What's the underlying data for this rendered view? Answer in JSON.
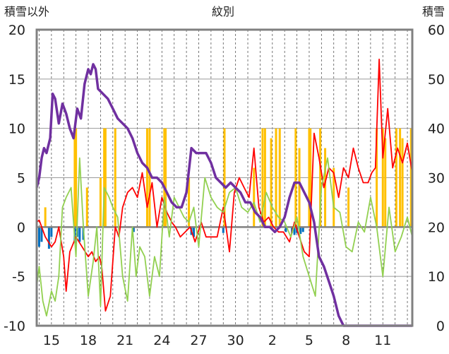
{
  "chart_data": {
    "type": "mixed",
    "title": "紋別",
    "left_axis": {
      "label": "積雪以外",
      "ylim": [
        -10,
        20
      ],
      "ticks": [
        20,
        15,
        10,
        5,
        0,
        -5,
        -10
      ]
    },
    "right_axis": {
      "label": "積雪",
      "ylim": [
        0,
        60
      ],
      "ticks": [
        60,
        50,
        40,
        30,
        20,
        10,
        0
      ]
    },
    "x_axis": {
      "tick_labels": [
        "15",
        "18",
        "21",
        "24",
        "27",
        "30",
        "2",
        "5",
        "8",
        "11"
      ],
      "tick_day_index": [
        2,
        5,
        8,
        11,
        14,
        17,
        20,
        23,
        26,
        29
      ],
      "day_range": [
        0.8,
        31.4
      ]
    },
    "grid": true,
    "series": [
      {
        "kind": "bar",
        "axis": "left",
        "color": "#FFC000",
        "bars": [
          [
            1.5,
            2
          ],
          [
            3.9,
            9.5
          ],
          [
            4.0,
            10
          ],
          [
            4.9,
            4
          ],
          [
            6.0,
            5
          ],
          [
            6.3,
            10
          ],
          [
            6.4,
            10
          ],
          [
            7.2,
            10
          ],
          [
            9.8,
            10
          ],
          [
            10.0,
            10
          ],
          [
            11.2,
            10
          ],
          [
            11.3,
            10
          ],
          [
            13.2,
            5
          ],
          [
            16.1,
            10
          ],
          [
            18.5,
            6
          ],
          [
            19.2,
            10
          ],
          [
            19.4,
            10
          ],
          [
            19.9,
            9
          ],
          [
            20.3,
            10
          ],
          [
            20.6,
            10
          ],
          [
            21.9,
            10
          ],
          [
            22.2,
            8
          ],
          [
            23.0,
            10
          ],
          [
            23.1,
            10
          ],
          [
            23.9,
            10
          ],
          [
            24.3,
            8
          ],
          [
            25.0,
            6
          ],
          [
            26.2,
            4
          ],
          [
            28.5,
            10
          ],
          [
            29.0,
            10
          ],
          [
            29.2,
            9
          ],
          [
            30.1,
            10
          ],
          [
            30.4,
            10
          ],
          [
            30.6,
            9
          ],
          [
            31.3,
            10
          ]
        ]
      },
      {
        "kind": "bar",
        "axis": "left",
        "color": "#0070C0",
        "bars": [
          [
            1.0,
            -2
          ],
          [
            1.2,
            -1.5
          ],
          [
            1.8,
            -2.2
          ],
          [
            2.0,
            -1.0
          ],
          [
            3.9,
            -1.6
          ],
          [
            4.1,
            -1.0
          ],
          [
            4.3,
            -1.5
          ],
          [
            4.6,
            -1.3
          ],
          [
            8.7,
            -0.5
          ],
          [
            13.4,
            -0.8
          ],
          [
            13.6,
            -1.0
          ],
          [
            16.0,
            -0.6
          ],
          [
            21.1,
            -0.5
          ],
          [
            21.6,
            -0.6
          ],
          [
            21.8,
            -0.8
          ],
          [
            22.0,
            -0.6
          ],
          [
            22.3,
            -0.7
          ],
          [
            22.5,
            -0.5
          ]
        ]
      },
      {
        "kind": "line",
        "axis": "left",
        "color": "#FF0000",
        "x": [
          0.8,
          1.0,
          1.5,
          2.0,
          2.3,
          2.6,
          3.0,
          3.2,
          3.5,
          4.0,
          4.5,
          5.0,
          5.3,
          5.6,
          5.9,
          6.1,
          6.4,
          6.8,
          7.2,
          7.5,
          7.8,
          8.2,
          8.6,
          9.0,
          9.4,
          9.8,
          10.2,
          10.6,
          11.0,
          11.4,
          11.8,
          12.1,
          12.5,
          12.9,
          13.3,
          13.7,
          14.2,
          14.6,
          15.0,
          15.5,
          16.0,
          16.5,
          16.9,
          17.3,
          17.7,
          18.1,
          18.5,
          18.9,
          19.3,
          19.7,
          20.1,
          20.5,
          20.9,
          21.4,
          21.8,
          22.2,
          22.6,
          23.0,
          23.4,
          23.8,
          24.2,
          24.6,
          25.0,
          25.4,
          25.8,
          26.2,
          26.6,
          27.0,
          27.4,
          27.8,
          28.1,
          28.4,
          28.7,
          29.0,
          29.4,
          29.8,
          30.2,
          30.6,
          31.0,
          31.4
        ],
        "y": [
          0.5,
          0.7,
          -1.0,
          -2.0,
          -1.5,
          0.0,
          -3.0,
          -6.5,
          -2.5,
          -1.0,
          -2.0,
          -3.0,
          -2.5,
          -3.5,
          -3.0,
          -4.0,
          -8.5,
          -7.0,
          0.0,
          -1.0,
          2.0,
          3.5,
          4.0,
          3.0,
          5.5,
          2.0,
          4.5,
          0.0,
          3.0,
          1.5,
          0.5,
          0.0,
          -1.0,
          -0.5,
          0.0,
          -1.5,
          0.5,
          -1.0,
          -1.0,
          -1.0,
          2.0,
          -2.5,
          3.5,
          5.0,
          4.0,
          3.0,
          8.0,
          2.0,
          0.5,
          1.0,
          0.0,
          -0.5,
          -0.5,
          -1.5,
          0.5,
          -1.0,
          -2.5,
          -3.0,
          9.5,
          7.0,
          4.0,
          6.0,
          5.5,
          3.0,
          6.0,
          5.0,
          8.0,
          6.0,
          4.5,
          4.5,
          5.5,
          6.0,
          17.0,
          7.0,
          12.0,
          6.0,
          8.0,
          6.5,
          8.5,
          5.5
        ]
      },
      {
        "kind": "line",
        "axis": "left",
        "color": "#92D050",
        "x": [
          0.8,
          1.0,
          1.3,
          1.6,
          2.0,
          2.3,
          2.6,
          2.9,
          3.2,
          3.6,
          4.0,
          4.3,
          4.6,
          5.0,
          5.4,
          5.7,
          6.0,
          6.3,
          6.7,
          7.0,
          7.4,
          7.8,
          8.2,
          8.6,
          8.9,
          9.2,
          9.6,
          10.0,
          10.4,
          10.8,
          11.2,
          11.6,
          12.0,
          12.4,
          12.8,
          13.2,
          13.6,
          14.0,
          14.5,
          15.0,
          15.5,
          16.0,
          16.5,
          17.0,
          17.5,
          18.0,
          18.5,
          19.0,
          19.5,
          20.0,
          20.5,
          21.0,
          21.5,
          22.0,
          22.5,
          23.0,
          23.5,
          24.0,
          24.5,
          25.0,
          25.5,
          26.0,
          26.5,
          27.0,
          27.5,
          28.0,
          28.5,
          29.0,
          29.5,
          30.0,
          30.5,
          31.0,
          31.4
        ],
        "y": [
          -6.0,
          -4.0,
          -7.5,
          -9.0,
          -6.5,
          -7.5,
          -5.0,
          2.0,
          3.0,
          4.0,
          -3.0,
          7.0,
          0.0,
          -7.0,
          -3.5,
          0.0,
          -8.0,
          4.0,
          3.0,
          2.0,
          1.0,
          -5.0,
          -7.5,
          0.0,
          -5.0,
          -2.0,
          -3.0,
          -7.0,
          -3.0,
          -5.0,
          3.0,
          -1.0,
          3.0,
          2.0,
          1.0,
          0.5,
          2.0,
          -2.0,
          5.0,
          3.0,
          2.0,
          1.5,
          3.5,
          4.0,
          2.0,
          1.5,
          2.5,
          0.5,
          3.5,
          2.0,
          1.0,
          0.5,
          -1.0,
          1.0,
          -3.0,
          -5.0,
          -7.0,
          4.0,
          7.0,
          2.0,
          1.5,
          -2.0,
          -2.5,
          0.5,
          -0.5,
          3.0,
          0.0,
          -5.0,
          2.0,
          -2.5,
          -1.0,
          1.0,
          -1.0
        ]
      },
      {
        "kind": "line",
        "axis": "right",
        "color": "#7030A0",
        "x": [
          0.8,
          1.0,
          1.2,
          1.4,
          1.6,
          1.9,
          2.1,
          2.3,
          2.6,
          2.9,
          3.2,
          3.5,
          3.8,
          4.1,
          4.4,
          4.7,
          5.0,
          5.2,
          5.4,
          5.6,
          5.8,
          6.2,
          6.6,
          7.0,
          7.4,
          7.8,
          8.2,
          8.6,
          9.0,
          9.4,
          9.8,
          10.2,
          10.6,
          11.0,
          11.4,
          11.8,
          12.2,
          12.6,
          13.0,
          13.4,
          13.8,
          14.2,
          14.6,
          15.0,
          15.4,
          15.8,
          16.2,
          16.6,
          17.0,
          17.4,
          17.8,
          18.2,
          18.6,
          19.0,
          19.4,
          19.8,
          20.2,
          20.6,
          21.0,
          21.4,
          21.8,
          22.2,
          22.6,
          23.0,
          23.4,
          23.8,
          24.2,
          24.6,
          25.0,
          25.4,
          25.8,
          26.2,
          26.6,
          27.0,
          27.4,
          27.8,
          28.2,
          28.6,
          29.0,
          29.4,
          29.8,
          30.2,
          30.6,
          31.0,
          31.4
        ],
        "y": [
          28,
          30,
          34,
          36,
          35,
          38,
          47,
          46,
          41,
          45,
          43,
          40,
          38,
          44,
          42,
          49,
          52,
          51,
          53,
          52,
          48,
          47,
          46,
          44,
          42,
          41,
          40,
          38,
          35,
          33,
          32,
          30,
          30,
          29,
          27,
          25,
          24,
          24,
          27,
          36,
          35,
          35,
          35,
          33,
          30,
          29,
          28,
          29,
          28,
          27,
          25,
          25,
          23,
          22,
          20,
          20,
          19,
          20,
          22,
          26,
          29,
          29,
          27,
          25,
          21,
          14,
          12,
          9,
          6,
          2,
          0,
          0,
          0,
          0,
          0,
          0,
          0,
          0,
          0,
          0,
          0,
          0,
          0,
          0,
          0
        ]
      }
    ]
  }
}
